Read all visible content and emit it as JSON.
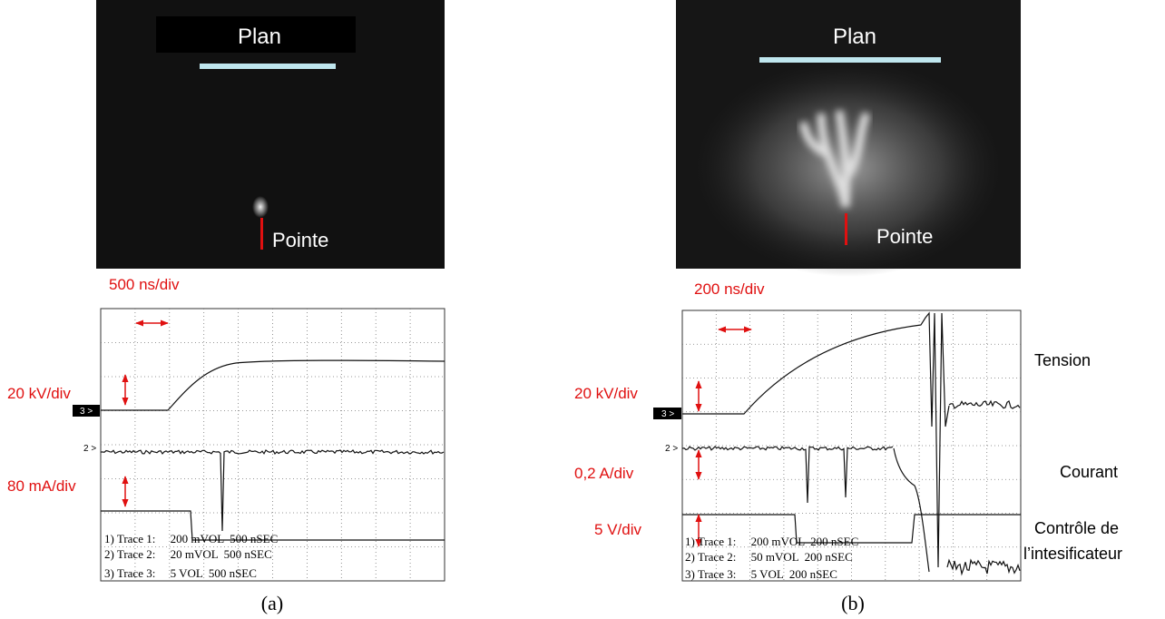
{
  "panels": [
    {
      "photo": {
        "top_label": "Plan",
        "bottom_label": "Pointe"
      },
      "timebase": "500 ns/div",
      "scales": [
        "20 kV/div",
        "80 mA/div"
      ],
      "channels": [
        "3 >",
        "2 >"
      ],
      "scope_legend": [
        "1) Trace 1:     200 mVOL  500 nSEC",
        "2) Trace 2:     20 mVOL  500 nSEC",
        "3) Trace 3:     5 VOL  500 nSEC"
      ],
      "caption": "(a)"
    },
    {
      "photo": {
        "top_label": "Plan",
        "bottom_label": "Pointe"
      },
      "timebase": "200 ns/div",
      "scales": [
        "20 kV/div",
        "0,2 A/div",
        "5 V/div"
      ],
      "channels": [
        "3 >",
        "2 >"
      ],
      "signal_names": [
        "Tension",
        "Courant",
        "Contrôle de",
        "l’intesificateur"
      ],
      "scope_legend": [
        "1) Trace 1:     200 mVOL  200 nSEC",
        "2) Trace 2:     50 mVOL  200 nSEC",
        "3) Trace 3:     5 VOL  200 nSEC"
      ],
      "caption": "(b)"
    }
  ]
}
